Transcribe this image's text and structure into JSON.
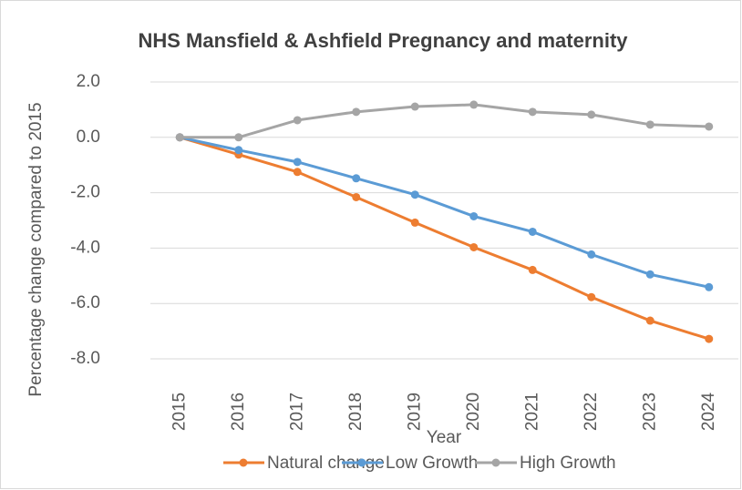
{
  "chart_data": {
    "type": "line",
    "title": "NHS Mansfield & Ashfield Pregnancy and maternity",
    "x_label": "Year",
    "y_label": "Percentage change compared to 2015",
    "categories": [
      "2015",
      "2016",
      "2017",
      "2018",
      "2019",
      "2020",
      "2021",
      "2022",
      "2023",
      "2024"
    ],
    "series": [
      {
        "name": "Natural change",
        "color": "#ed7d31",
        "values": [
          0,
          -0.62,
          -1.25,
          -2.16,
          -3.08,
          -3.97,
          -4.79,
          -5.77,
          -6.62,
          -7.28
        ]
      },
      {
        "name": "Low Growth",
        "color": "#5b9bd5",
        "values": [
          0,
          -0.46,
          -0.89,
          -1.48,
          -2.07,
          -2.85,
          -3.41,
          -4.23,
          -4.95,
          -5.41
        ]
      },
      {
        "name": "High Growth",
        "color": "#a5a5a5",
        "values": [
          0,
          0,
          0.62,
          0.92,
          1.11,
          1.18,
          0.92,
          0.82,
          0.46,
          0.39
        ]
      }
    ],
    "ylim": [
      -8,
      2
    ],
    "yticks": [
      {
        "value": 2,
        "label": "2.0"
      },
      {
        "value": 0,
        "label": "0.0"
      },
      {
        "value": -2,
        "label": "-2.0"
      },
      {
        "value": -4,
        "label": "-4.0"
      },
      {
        "value": -6,
        "label": "-6.0"
      },
      {
        "value": -8,
        "label": "-8.0"
      }
    ],
    "grid": true,
    "legend": "bottom"
  }
}
